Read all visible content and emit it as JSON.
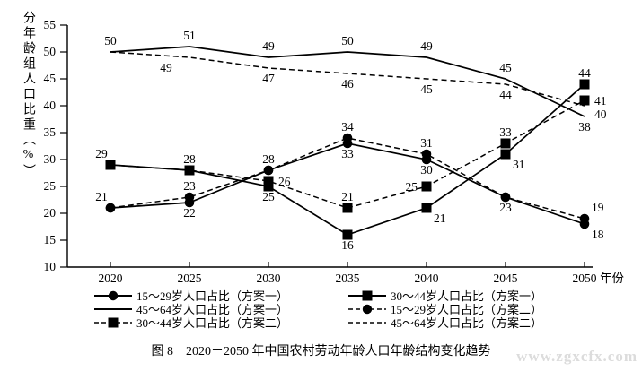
{
  "page": {
    "caption": "图 8　2020－2050 年中国农村劳动年龄人口年龄结构变化趋势",
    "watermark": "www.zgxcfx.com"
  },
  "chart_data": {
    "type": "line",
    "title": "",
    "xlabel": "年份",
    "ylabel": "分年龄组人口比重（%）",
    "x": [
      2020,
      2025,
      2030,
      2035,
      2040,
      2045,
      2050
    ],
    "ylim": [
      10,
      55
    ],
    "ytick_step": 5,
    "grid": false,
    "legend_position": "below",
    "line_color": "#000000",
    "background_color": "#ffffff",
    "series": [
      {
        "name": "15～29岁人口占比（方案一）",
        "line": "solid",
        "marker": "circle",
        "values": [
          21,
          22,
          28,
          33,
          30,
          23,
          18
        ],
        "label_pos": [
          "above-left",
          "below",
          null,
          "below",
          "below",
          "below",
          "below-right"
        ]
      },
      {
        "name": "30～44岁人口占比（方案一）",
        "line": "solid",
        "marker": "square",
        "values": [
          29,
          28,
          25,
          16,
          21,
          31,
          44
        ],
        "label_pos": [
          "above-left",
          "above",
          "below",
          "below",
          "below-right",
          "below-right",
          "above"
        ]
      },
      {
        "name": "45～64岁人口占比（方案一）",
        "line": "solid",
        "marker": "none",
        "values": [
          50,
          51,
          49,
          50,
          49,
          45,
          38
        ],
        "label_pos": [
          "above",
          "above",
          "above",
          "above",
          "above",
          "above",
          "below"
        ]
      },
      {
        "name": "15～29岁人口占比（方案二）",
        "line": "dashed",
        "marker": "circle",
        "values": [
          21,
          23,
          28,
          34,
          31,
          23,
          19
        ],
        "label_pos": [
          null,
          "above",
          "above",
          "above",
          "above",
          null,
          "above-right"
        ]
      },
      {
        "name": "30～44岁人口占比（方案二）",
        "line": "dashed",
        "marker": "square",
        "values": [
          29,
          28,
          26,
          21,
          25,
          33,
          41
        ],
        "label_pos": [
          null,
          null,
          "right",
          "above",
          "left",
          "above",
          "right"
        ]
      },
      {
        "name": "45～64岁人口占比（方案二）",
        "line": "dashed",
        "marker": "none",
        "values": [
          50,
          49,
          47,
          46,
          45,
          44,
          40
        ],
        "label_pos": [
          null,
          "below-left",
          "below",
          "below",
          "below",
          "below",
          "right-below"
        ]
      }
    ]
  }
}
